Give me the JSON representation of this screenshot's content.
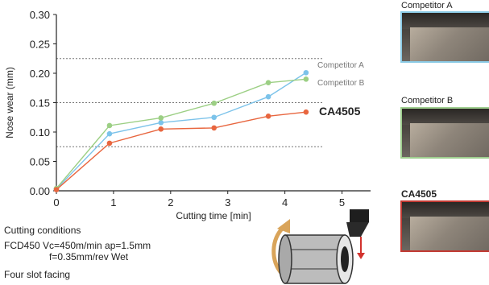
{
  "chart_data": {
    "type": "line",
    "ylabel": "Nose wear (mm)",
    "xlabel": "Cutting time [min]",
    "xlim": [
      0,
      5.5
    ],
    "ylim": [
      0,
      0.3
    ],
    "xticks": [
      "0",
      "1",
      "2",
      "3",
      "4",
      "5"
    ],
    "yticks": [
      "0.00",
      "0.05",
      "0.10",
      "0.15",
      "0.20",
      "0.25",
      "0.30"
    ],
    "gridlines_y": [
      0.075,
      0.15,
      0.225
    ],
    "series": [
      {
        "name": "Competitor A",
        "color": "#7cc3ea",
        "x": [
          0,
          0.93,
          1.83,
          2.76,
          3.71,
          4.37
        ],
        "y": [
          0.003,
          0.097,
          0.116,
          0.125,
          0.16,
          0.201
        ]
      },
      {
        "name": "Competitor B",
        "color": "#9ccf84",
        "x": [
          0,
          0.93,
          1.83,
          2.76,
          3.71,
          4.37
        ],
        "y": [
          0.004,
          0.111,
          0.124,
          0.149,
          0.184,
          0.19
        ]
      },
      {
        "name": "CA4505",
        "color": "#e8663f",
        "x": [
          0,
          0.93,
          1.83,
          2.76,
          3.71,
          4.37
        ],
        "y": [
          0.002,
          0.081,
          0.105,
          0.107,
          0.127,
          0.134
        ]
      }
    ]
  },
  "conditions": {
    "title": "Cutting conditions",
    "line1": "FCD450 Vc=450m/min ap=1.5mm",
    "line2": "f=0.35mm/rev Wet",
    "line3": "Four slot facing"
  },
  "photos": {
    "a_label": "Competitor A",
    "b_label": "Competitor B",
    "c_label": "CA4505"
  }
}
